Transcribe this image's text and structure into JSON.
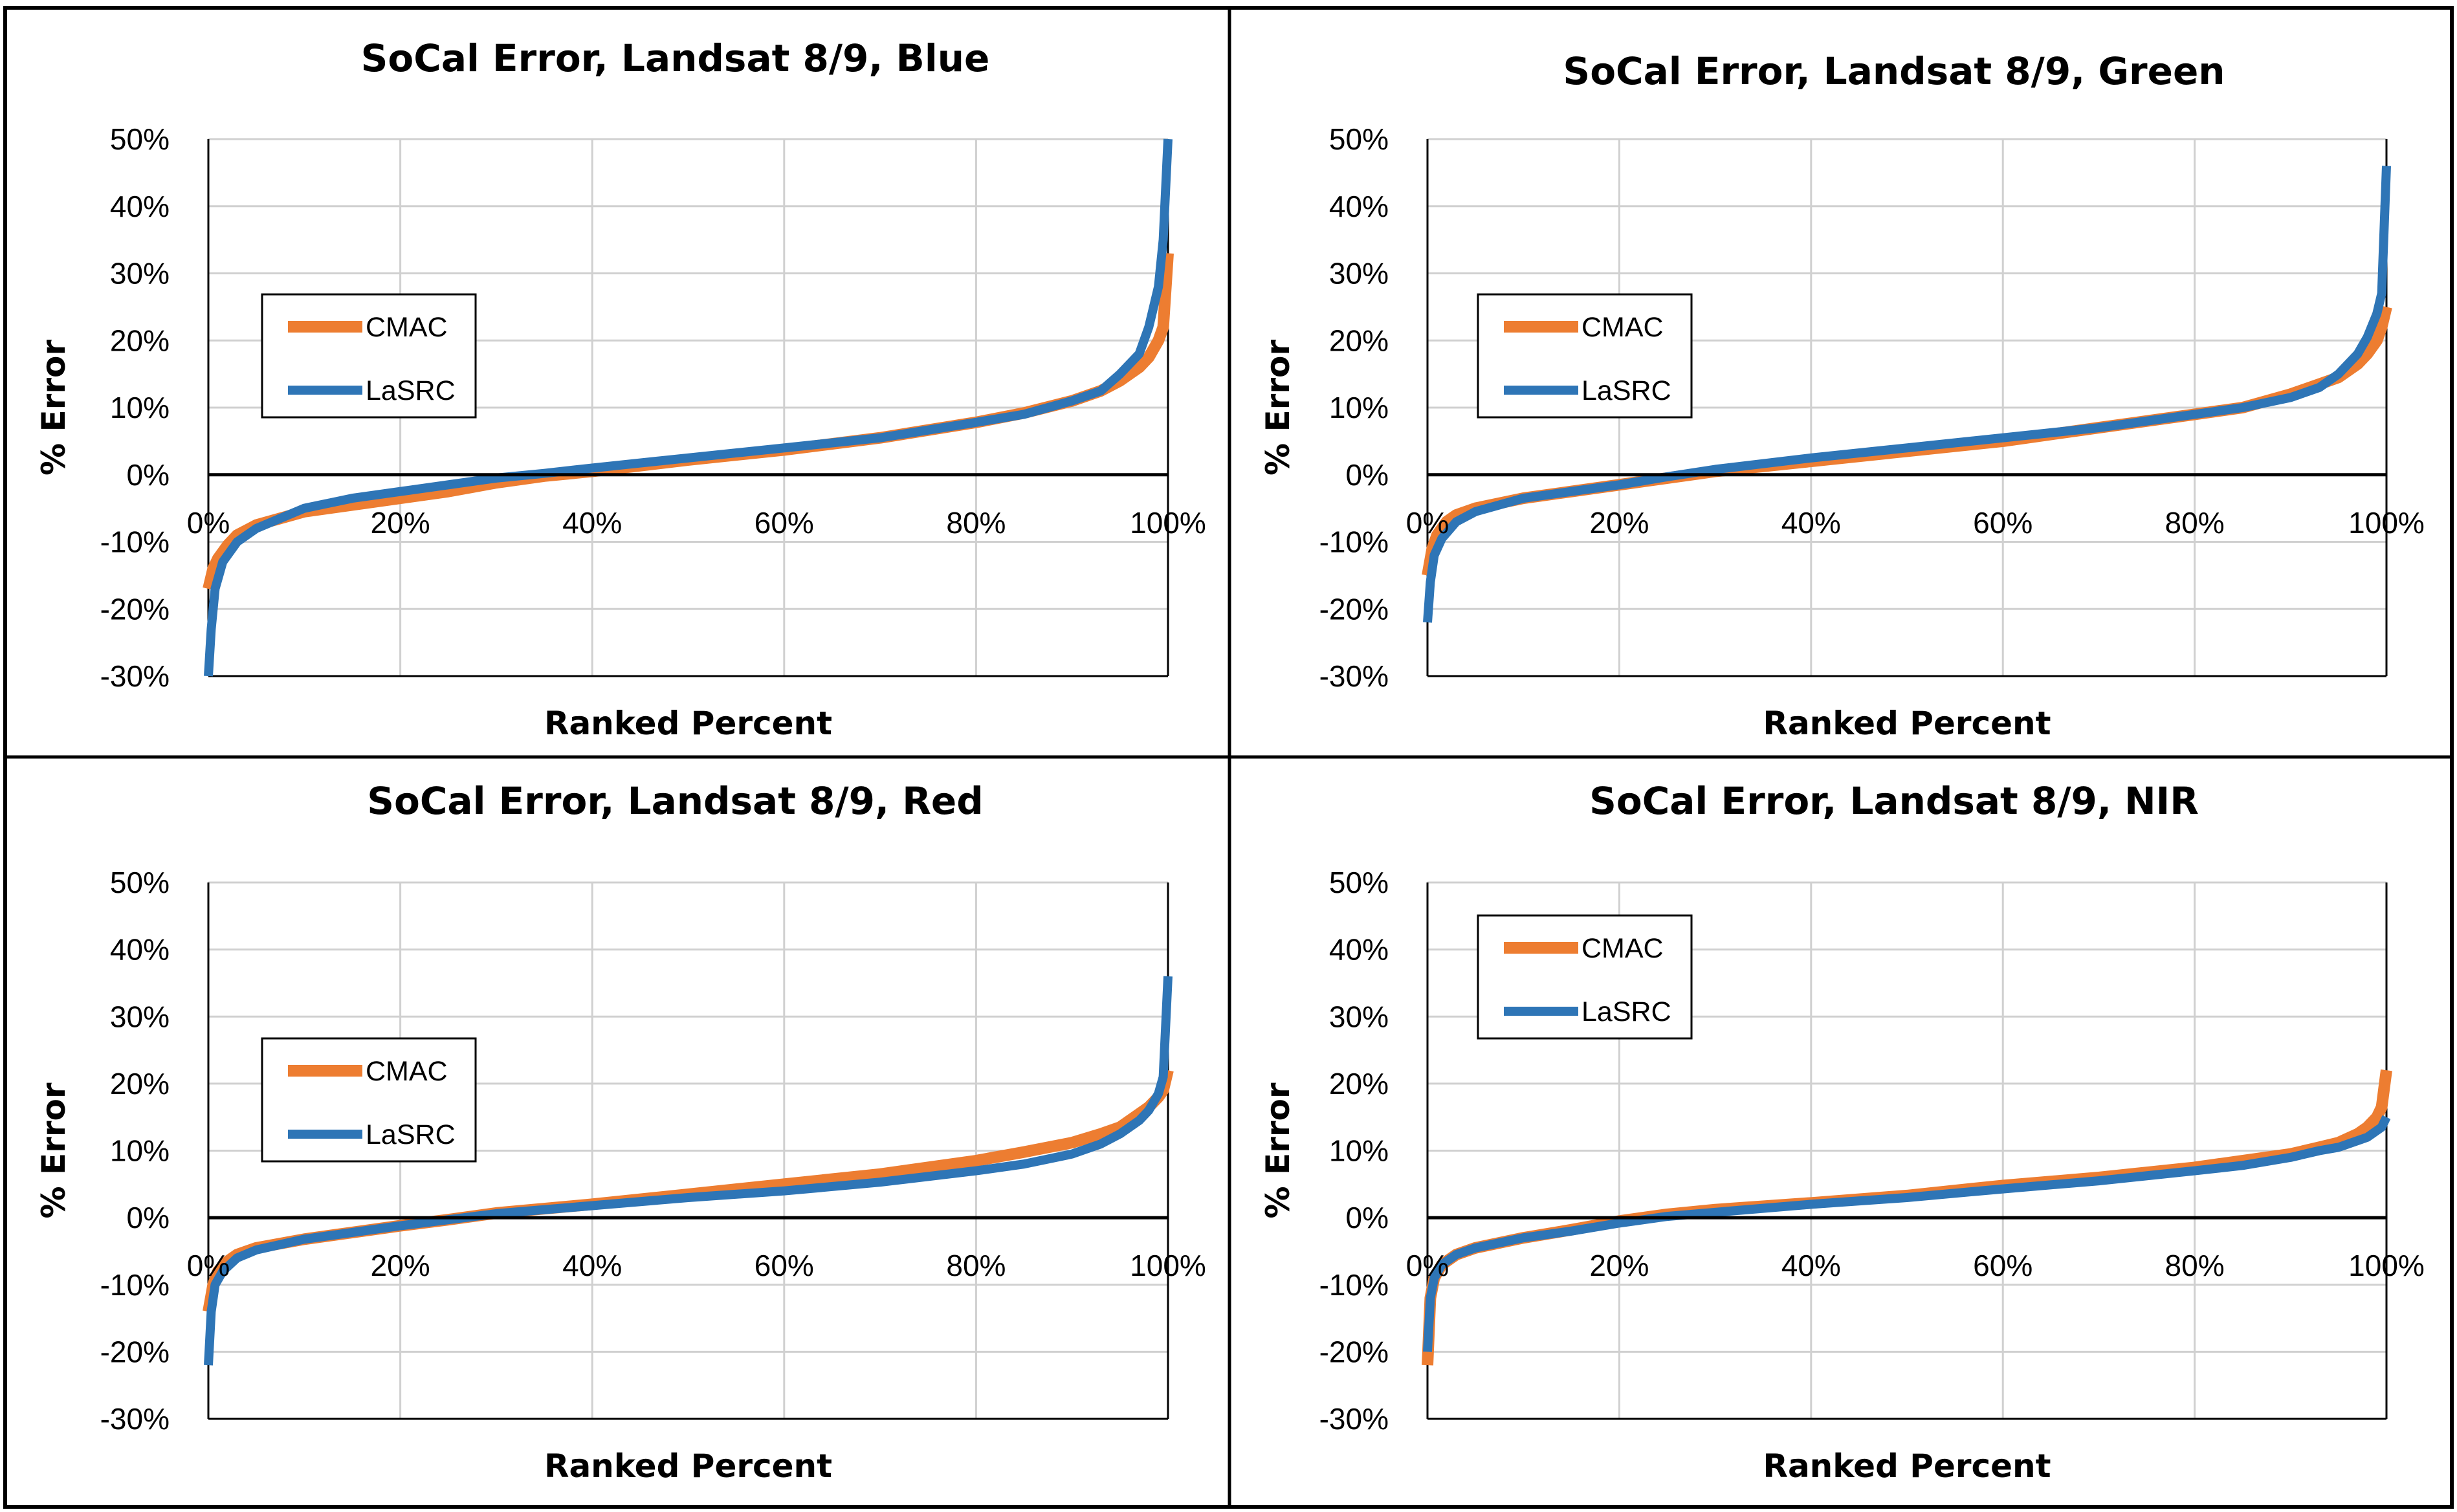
{
  "colors": {
    "cmac": "#ED7D31",
    "lasrc": "#2E75B6",
    "grid": "#D0D0D0",
    "border": "#000000"
  },
  "y_tick_labels": [
    "50%",
    "40%",
    "30%",
    "20%",
    "10%",
    "0%",
    "-10%",
    "-20%",
    "-30%"
  ],
  "x_tick_labels": [
    "0%",
    "20%",
    "40%",
    "60%",
    "80%",
    "100%"
  ],
  "chart_data": [
    {
      "type": "line",
      "title": "SoCal Error, Landsat 8/9, Blue",
      "xlabel": "Ranked Percent",
      "ylabel": "% Error",
      "xlim": [
        0,
        100
      ],
      "ylim": [
        -30,
        50
      ],
      "grid": true,
      "legend_position": "middle-left",
      "series": [
        {
          "name": "CMAC",
          "color": "#ED7D31",
          "x": [
            0,
            0.5,
            1,
            2,
            3,
            5,
            10,
            15,
            20,
            25,
            30,
            35,
            40,
            50,
            60,
            70,
            80,
            85,
            90,
            93,
            95,
            97,
            98,
            99,
            99.5,
            100
          ],
          "y": [
            -17,
            -14,
            -12.5,
            -10.5,
            -9,
            -7.5,
            -5.5,
            -4.5,
            -3.5,
            -2.5,
            -1.2,
            -0.2,
            0.5,
            2.2,
            3.7,
            5.5,
            7.8,
            9.2,
            11,
            12.5,
            14,
            16,
            17.5,
            20,
            22,
            33
          ]
        },
        {
          "name": "LaSRC",
          "color": "#2E75B6",
          "x": [
            0,
            0.3,
            0.7,
            1.5,
            3,
            5,
            10,
            15,
            20,
            25,
            30,
            35,
            40,
            50,
            60,
            70,
            80,
            85,
            90,
            93,
            95,
            97,
            98,
            99,
            99.5,
            100
          ],
          "y": [
            -30,
            -23,
            -17,
            -13,
            -10,
            -8,
            -5,
            -3.5,
            -2.5,
            -1.5,
            -0.5,
            0.2,
            1,
            2.5,
            4,
            5.5,
            7.8,
            9,
            11,
            12.5,
            15,
            18,
            22,
            28,
            35,
            50
          ]
        }
      ]
    },
    {
      "type": "line",
      "title": "SoCal Error, Landsat 8/9, Green",
      "xlabel": "Ranked Percent",
      "ylabel": "% Error",
      "xlim": [
        0,
        100
      ],
      "ylim": [
        -30,
        50
      ],
      "grid": true,
      "legend_position": "middle-left",
      "series": [
        {
          "name": "CMAC",
          "color": "#ED7D31",
          "x": [
            0,
            0.5,
            1,
            2,
            3,
            5,
            10,
            15,
            20,
            25,
            30,
            40,
            50,
            60,
            70,
            80,
            85,
            90,
            93,
            95,
            97,
            98,
            99,
            99.5,
            100
          ],
          "y": [
            -15,
            -11,
            -9,
            -7,
            -6,
            -5,
            -3.5,
            -2.5,
            -1.5,
            -0.5,
            0.5,
            2,
            3.5,
            5,
            7,
            9,
            10,
            12,
            13.5,
            14.5,
            16.5,
            18,
            20,
            22,
            25
          ]
        },
        {
          "name": "LaSRC",
          "color": "#2E75B6",
          "x": [
            0,
            0.3,
            0.7,
            1.5,
            3,
            5,
            10,
            15,
            20,
            25,
            30,
            40,
            50,
            60,
            70,
            80,
            85,
            90,
            93,
            95,
            97,
            98,
            99,
            99.5,
            100
          ],
          "y": [
            -22,
            -16,
            -12,
            -9.5,
            -7,
            -5.5,
            -3.5,
            -2.5,
            -1.5,
            -0.3,
            0.8,
            2.5,
            4,
            5.5,
            7,
            9,
            10,
            11.5,
            13,
            15,
            18,
            20.5,
            24,
            27,
            46
          ]
        }
      ]
    },
    {
      "type": "line",
      "title": "SoCal Error, Landsat 8/9, Red",
      "xlabel": "Ranked Percent",
      "ylabel": "% Error",
      "xlim": [
        0,
        100
      ],
      "ylim": [
        -30,
        50
      ],
      "grid": true,
      "legend_position": "middle-left",
      "series": [
        {
          "name": "CMAC",
          "color": "#ED7D31",
          "x": [
            0,
            0.5,
            1,
            2,
            3,
            5,
            10,
            15,
            20,
            25,
            30,
            40,
            50,
            60,
            70,
            80,
            85,
            90,
            93,
            95,
            97,
            98,
            99,
            99.5,
            100
          ],
          "y": [
            -14,
            -10,
            -8,
            -6.5,
            -5.5,
            -4.5,
            -3.2,
            -2.2,
            -1.2,
            -0.3,
            0.7,
            2,
            3.5,
            5,
            6.5,
            8.5,
            9.8,
            11.2,
            12.5,
            13.5,
            15.5,
            16.5,
            18,
            19,
            22
          ]
        },
        {
          "name": "LaSRC",
          "color": "#2E75B6",
          "x": [
            0,
            0.3,
            0.7,
            1.5,
            3,
            5,
            10,
            15,
            20,
            25,
            30,
            40,
            50,
            60,
            70,
            80,
            85,
            90,
            93,
            95,
            97,
            98,
            99,
            99.5,
            100
          ],
          "y": [
            -22,
            -14,
            -10,
            -8,
            -6,
            -4.8,
            -3.2,
            -2.2,
            -1.2,
            -0.3,
            0.6,
            1.8,
            3,
            4,
            5.3,
            7,
            8,
            9.5,
            11,
            12.5,
            14.5,
            16,
            18.5,
            21,
            36
          ]
        }
      ]
    },
    {
      "type": "line",
      "title": "SoCal Error, Landsat 8/9, NIR",
      "xlabel": "Ranked Percent",
      "ylabel": "% Error",
      "xlim": [
        0,
        100
      ],
      "ylim": [
        -30,
        50
      ],
      "grid": true,
      "legend_position": "top-left",
      "series": [
        {
          "name": "CMAC",
          "color": "#ED7D31",
          "x": [
            0,
            0.3,
            0.7,
            1.5,
            3,
            5,
            10,
            15,
            20,
            25,
            30,
            40,
            50,
            60,
            70,
            80,
            85,
            90,
            93,
            95,
            97,
            98,
            99,
            99.5,
            100
          ],
          "y": [
            -22,
            -12,
            -9,
            -7,
            -5.5,
            -4.5,
            -3,
            -1.8,
            -0.5,
            0.5,
            1.2,
            2.2,
            3.3,
            4.8,
            6,
            7.5,
            8.5,
            9.5,
            10.5,
            11.2,
            12.5,
            13.5,
            15,
            16.5,
            22
          ]
        },
        {
          "name": "LaSRC",
          "color": "#2E75B6",
          "x": [
            0,
            0.3,
            0.7,
            1.5,
            3,
            5,
            10,
            15,
            20,
            25,
            30,
            40,
            50,
            60,
            70,
            80,
            85,
            90,
            93,
            95,
            97,
            98,
            99,
            99.5,
            100
          ],
          "y": [
            -20,
            -12,
            -9,
            -7,
            -5.5,
            -4.5,
            -3,
            -2,
            -0.8,
            0.2,
            0.8,
            2,
            3,
            4.3,
            5.5,
            7,
            7.8,
            9,
            10,
            10.5,
            11.5,
            12,
            13,
            13.5,
            15
          ]
        }
      ]
    }
  ]
}
